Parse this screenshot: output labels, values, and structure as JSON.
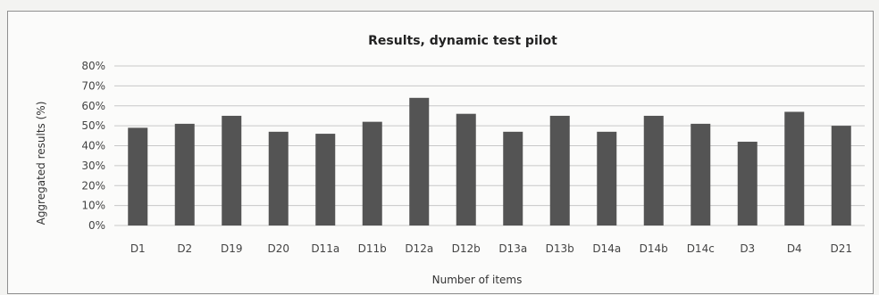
{
  "chart_data": {
    "type": "bar",
    "title": "Results, dynamic test pilot",
    "xlabel": "Number of items",
    "ylabel": "Aggregated results (%)",
    "categories": [
      "D1",
      "D2",
      "D19",
      "D20",
      "D11a",
      "D11b",
      "D12a",
      "D12b",
      "D13a",
      "D13b",
      "D14a",
      "D14b",
      "D14c",
      "D3",
      "D4",
      "D21"
    ],
    "values": [
      49,
      51,
      55,
      47,
      46,
      52,
      64,
      56,
      47,
      55,
      47,
      55,
      51,
      42,
      57,
      50
    ],
    "ylim": [
      0,
      80
    ],
    "yticks": [
      "0%",
      "10%",
      "20%",
      "30%",
      "40%",
      "50%",
      "60%",
      "70%",
      "80%"
    ],
    "grid": true,
    "bar_color": "#545454"
  }
}
